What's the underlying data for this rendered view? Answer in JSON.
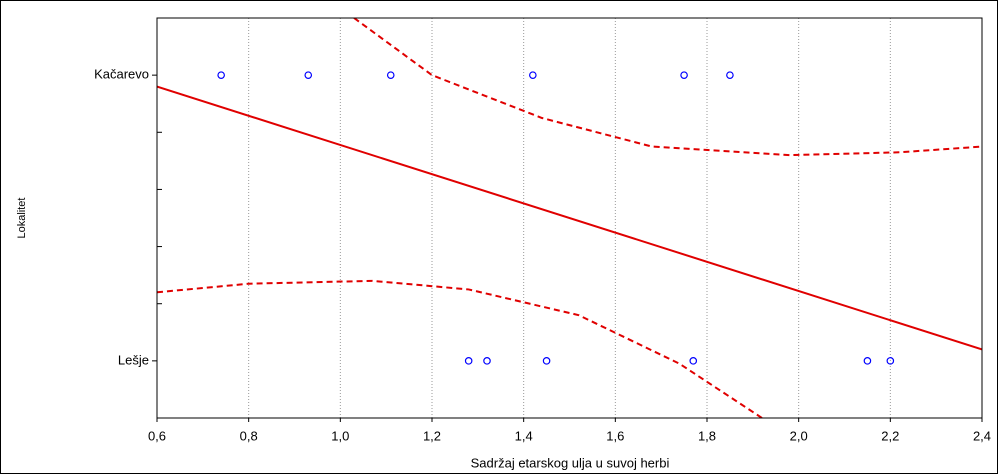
{
  "chart_data": {
    "type": "scatter",
    "x_label": "Sadržaj etarskog ulja u suvoj herbi",
    "y_label": "Lokalitet",
    "xlim": [
      0.6,
      2.4
    ],
    "xticks": [
      {
        "value": 0.6,
        "label": "0,6"
      },
      {
        "value": 0.8,
        "label": "0,8"
      },
      {
        "value": 1.0,
        "label": "1,0"
      },
      {
        "value": 1.2,
        "label": "1,2"
      },
      {
        "value": 1.4,
        "label": "1,4"
      },
      {
        "value": 1.6,
        "label": "1,6"
      },
      {
        "value": 1.8,
        "label": "1,8"
      },
      {
        "value": 2.0,
        "label": "2,0"
      },
      {
        "value": 2.2,
        "label": "2,2"
      },
      {
        "value": 2.4,
        "label": "2,4"
      }
    ],
    "ylim": [
      -0.2,
      1.2
    ],
    "yticks": [
      {
        "value": 0,
        "label": "Lešje"
      },
      {
        "value": 1,
        "label": "Kačarevo"
      }
    ],
    "y_minor_ticks": [
      -0.2,
      0.2,
      0.4,
      0.6,
      0.8,
      1.2
    ],
    "grid": true,
    "series": [
      {
        "color": "#0000ff",
        "x": [
          0.74,
          0.93,
          1.11,
          1.42,
          1.75,
          1.85
        ],
        "values": [
          1,
          1,
          1,
          1,
          1,
          1
        ]
      },
      {
        "color": "#0000ff",
        "x": [
          1.28,
          1.32,
          1.45,
          1.77,
          2.15,
          2.2
        ],
        "values": [
          0,
          0,
          0,
          0,
          0,
          0
        ]
      }
    ],
    "fit": {
      "color": "#e00000",
      "x": [
        0.6,
        2.4
      ],
      "values": [
        0.96,
        0.04
      ]
    },
    "bands": [
      {
        "color": "#e00000",
        "dashed": true,
        "x": [
          1.03,
          1.2,
          1.44,
          1.68,
          1.98,
          2.22,
          2.4
        ],
        "values": [
          1.2,
          1.0,
          0.85,
          0.75,
          0.72,
          0.73,
          0.75
        ]
      },
      {
        "color": "#e00000",
        "dashed": true,
        "x": [
          0.6,
          0.8,
          1.07,
          1.28,
          1.52,
          1.74,
          1.92
        ],
        "values": [
          0.24,
          0.27,
          0.28,
          0.25,
          0.16,
          -0.01,
          -0.2
        ]
      }
    ]
  }
}
